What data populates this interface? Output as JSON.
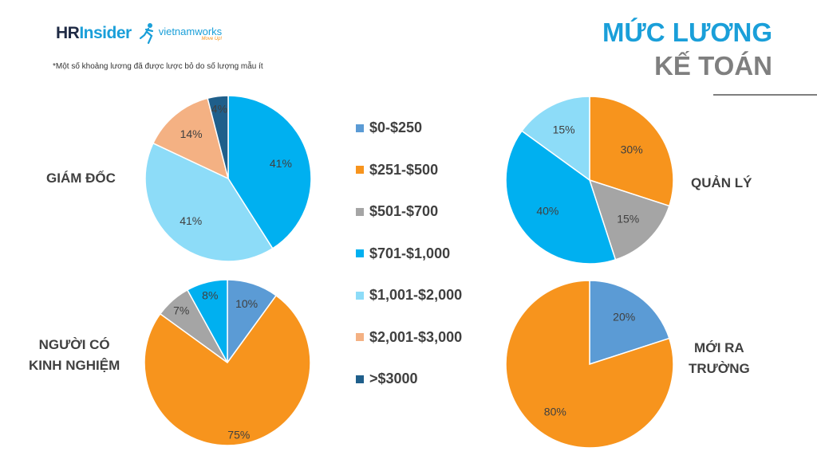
{
  "header": {
    "logo_hr_part1": "HR",
    "logo_hr_part2": "Insider",
    "logo_vn_main": "vietnamworks",
    "logo_vn_tag": "Move Up!",
    "note": "*Một số khoảng lương đã được lược bỏ do số lượng mẫu ít",
    "title_line1": "MỨC LƯƠNG",
    "title_line2": "KẾ TOÁN"
  },
  "colors": {
    "$0-$250": "#5b9bd5",
    "$251-$500": "#f7941d",
    "$501-$700": "#a5a5a5",
    "$701-$1,000": "#00b0f0",
    "$1,001-$2,000": "#8ddcf8",
    "$2,001-$3,000": "#f4b183",
    ">$3000": "#1f5f8b"
  },
  "legend": [
    "$0-$250",
    "$251-$500",
    "$501-$700",
    "$701-$1,000",
    "$1,001-$2,000",
    "$2,001-$3,000",
    ">$3000"
  ],
  "chart_data": [
    {
      "type": "pie",
      "title": "GIÁM ĐỐC",
      "slices": [
        {
          "category": "$701-$1,000",
          "value": 41,
          "label": "41%"
        },
        {
          "category": "$1,001-$2,000",
          "value": 41,
          "label": "41%"
        },
        {
          "category": "$2,001-$3,000",
          "value": 14,
          "label": "14%"
        },
        {
          "category": ">$3000",
          "value": 4,
          "label": "4%"
        }
      ]
    },
    {
      "type": "pie",
      "title": "QUẢN LÝ",
      "slices": [
        {
          "category": "$251-$500",
          "value": 30,
          "label": "30%"
        },
        {
          "category": "$501-$700",
          "value": 15,
          "label": "15%"
        },
        {
          "category": "$701-$1,000",
          "value": 40,
          "label": "40%"
        },
        {
          "category": "$1,001-$2,000",
          "value": 15,
          "label": "15%"
        }
      ]
    },
    {
      "type": "pie",
      "title_lines": [
        "NGƯỜI CÓ",
        "KINH NGHIỆM"
      ],
      "slices": [
        {
          "category": "$0-$250",
          "value": 10,
          "label": "10%"
        },
        {
          "category": "$251-$500",
          "value": 75,
          "label": "75%"
        },
        {
          "category": "$501-$700",
          "value": 7,
          "label": "7%"
        },
        {
          "category": "$701-$1,000",
          "value": 8,
          "label": "8%"
        }
      ]
    },
    {
      "type": "pie",
      "title_lines": [
        "MỚI RA",
        "TRƯỜNG"
      ],
      "slices": [
        {
          "category": "$0-$250",
          "value": 20,
          "label": "20%"
        },
        {
          "category": "$251-$500",
          "value": 80,
          "label": "80%"
        }
      ]
    }
  ]
}
